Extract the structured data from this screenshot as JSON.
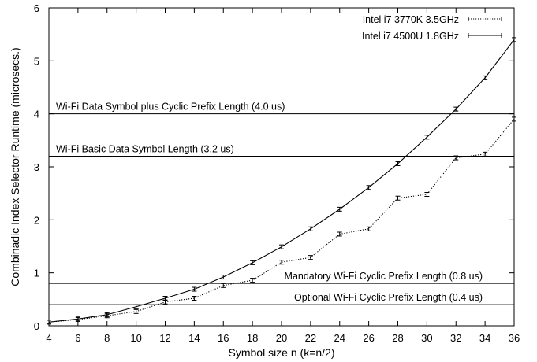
{
  "chart_data": {
    "type": "line",
    "xlabel": "Symbol size n (k=n/2)",
    "ylabel": "Combinadic Index Selector Runtime (microsecs.)",
    "xlim": [
      4,
      36
    ],
    "ylim": [
      0,
      6
    ],
    "x_ticks": [
      4,
      6,
      8,
      10,
      12,
      14,
      16,
      18,
      20,
      22,
      24,
      26,
      28,
      30,
      32,
      34,
      36
    ],
    "y_ticks": [
      0,
      1,
      2,
      3,
      4,
      5,
      6
    ],
    "grid": false,
    "legend_position": "top-right",
    "x": [
      4,
      6,
      8,
      10,
      12,
      14,
      16,
      18,
      20,
      22,
      24,
      26,
      28,
      30,
      32,
      34,
      36
    ],
    "series": [
      {
        "name": "Intel i7 3770K 3.5GHz",
        "style": "dotted",
        "error_bars": true,
        "values": [
          0.07,
          0.12,
          0.19,
          0.27,
          0.45,
          0.52,
          0.76,
          0.86,
          1.2,
          1.29,
          1.73,
          1.83,
          2.41,
          2.48,
          3.17,
          3.24,
          3.9
        ]
      },
      {
        "name": "Intel i7 4500U 1.8GHz",
        "style": "solid",
        "error_bars": true,
        "values": [
          0.07,
          0.13,
          0.21,
          0.36,
          0.52,
          0.69,
          0.92,
          1.19,
          1.49,
          1.83,
          2.2,
          2.61,
          3.06,
          3.56,
          4.09,
          4.68,
          5.4
        ]
      }
    ],
    "reference_lines": [
      {
        "y": 4.0,
        "label": "Wi-Fi Data Symbol plus Cyclic Prefix Length (4.0 us)",
        "label_side": "above",
        "label_align": "left"
      },
      {
        "y": 3.2,
        "label": "Wi-Fi Basic Data Symbol Length (3.2 us)",
        "label_side": "above",
        "label_align": "left"
      },
      {
        "y": 0.8,
        "label": "Mandatory Wi-Fi Cyclic Prefix Length (0.8 us)",
        "label_side": "above",
        "label_align": "right"
      },
      {
        "y": 0.4,
        "label": "Optional Wi-Fi Cyclic Prefix Length (0.4 us)",
        "label_side": "above",
        "label_align": "right"
      }
    ],
    "colors": {
      "series": "#000000",
      "reference": "#000000",
      "axes": "#000000"
    }
  }
}
